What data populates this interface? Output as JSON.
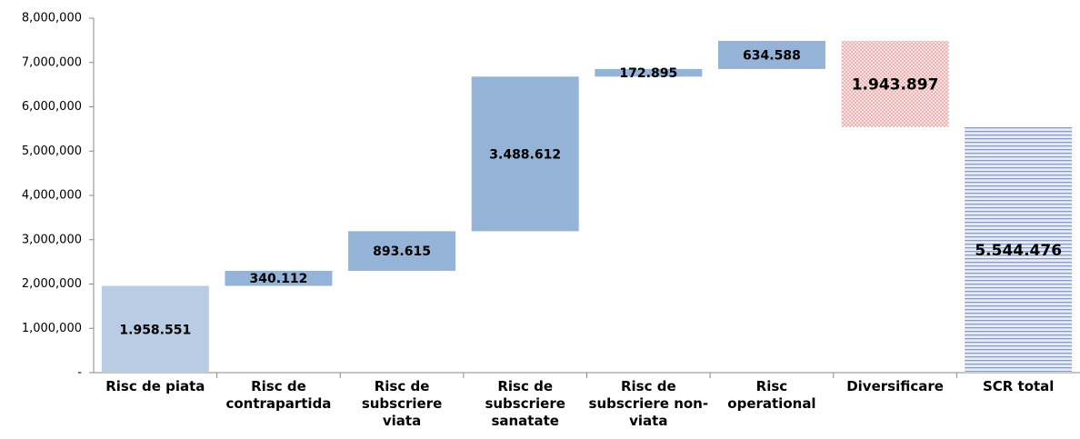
{
  "chart_data": {
    "type": "waterfall",
    "categories": [
      "Risc de piata",
      "Risc de contrapartida",
      "Risc de subscriere viata",
      "Risc de subscriere sanatate",
      "Risc de subscriere non-viata",
      "Risc operational",
      "Diversificare",
      "SCR total"
    ],
    "values": [
      1958551,
      340112,
      893615,
      3488612,
      172895,
      634588,
      -1943897,
      5544476
    ],
    "value_labels": [
      "1.958.551",
      "340.112",
      "893.615",
      "3.488.612",
      "172.895",
      "634.588",
      "1.943.897",
      "5.544.476"
    ],
    "measure": [
      "absolute",
      "relative",
      "relative",
      "relative",
      "relative",
      "relative",
      "relative",
      "total"
    ],
    "colors": [
      "#b8cce4",
      "#95b3d7",
      "#95b3d7",
      "#95b3d7",
      "#95b3d7",
      "#95b3d7",
      "#e88f8f",
      "#8c9dbd"
    ],
    "ylim": [
      0,
      8000000
    ],
    "yticks": [
      {
        "value": 0,
        "label": "-"
      },
      {
        "value": 1000000,
        "label": "1,000,000"
      },
      {
        "value": 2000000,
        "label": "2,000,000"
      },
      {
        "value": 3000000,
        "label": "3,000,000"
      },
      {
        "value": 4000000,
        "label": "4,000,000"
      },
      {
        "value": 5000000,
        "label": "5,000,000"
      },
      {
        "value": 6000000,
        "label": "6,000,000"
      },
      {
        "value": 7000000,
        "label": "7,000,000"
      },
      {
        "value": 8000000,
        "label": "8,000,000"
      }
    ],
    "grid": false
  }
}
